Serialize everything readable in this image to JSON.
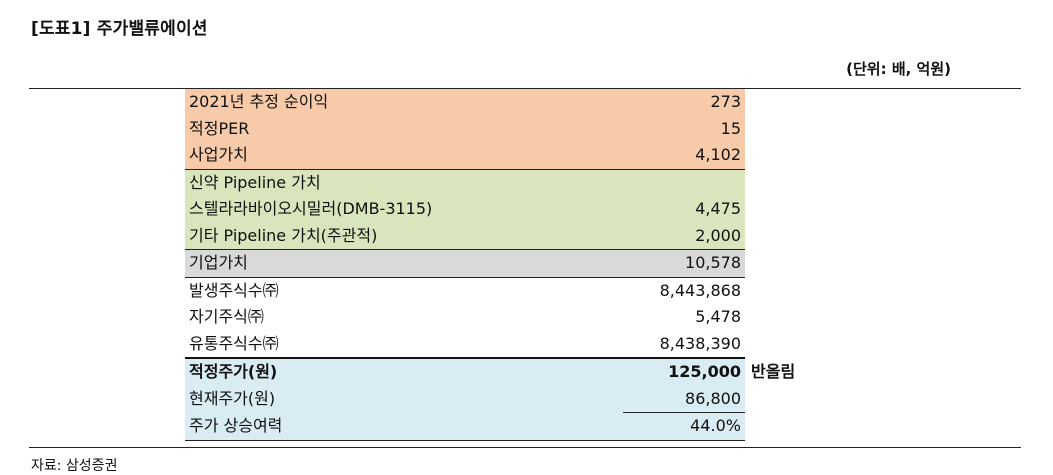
{
  "header": {
    "title": "[도표1] 주가밸류에이션",
    "unit": "(단위: 배, 억원)"
  },
  "table": {
    "rows": [
      {
        "label": "2021년 추정 순이익",
        "value": "273",
        "note": ""
      },
      {
        "label": "적정PER",
        "value": "15",
        "note": ""
      },
      {
        "label": "사업가치",
        "value": "4,102",
        "note": ""
      },
      {
        "label": "신약 Pipeline 가치",
        "value": "",
        "note": ""
      },
      {
        "label": "스텔라라바이오시밀러(DMB-3115)",
        "value": "4,475",
        "note": ""
      },
      {
        "label": "기타 Pipeline 가치(주관적)",
        "value": "2,000",
        "note": ""
      },
      {
        "label": "기업가치",
        "value": "10,578",
        "note": ""
      },
      {
        "label": "발생주식수㈜",
        "value": "8,443,868",
        "note": ""
      },
      {
        "label": "자기주식㈜",
        "value": "5,478",
        "note": ""
      },
      {
        "label": "유통주식수㈜",
        "value": "8,438,390",
        "note": ""
      },
      {
        "label": "적정주가(원)",
        "value": "125,000",
        "note": "반올림"
      },
      {
        "label": "현재주가(원)",
        "value": "86,800",
        "note": ""
      },
      {
        "label": "주가 상승여력",
        "value": "44.0%",
        "note": ""
      }
    ]
  },
  "footer": {
    "source": "자료: 삼성증권"
  }
}
